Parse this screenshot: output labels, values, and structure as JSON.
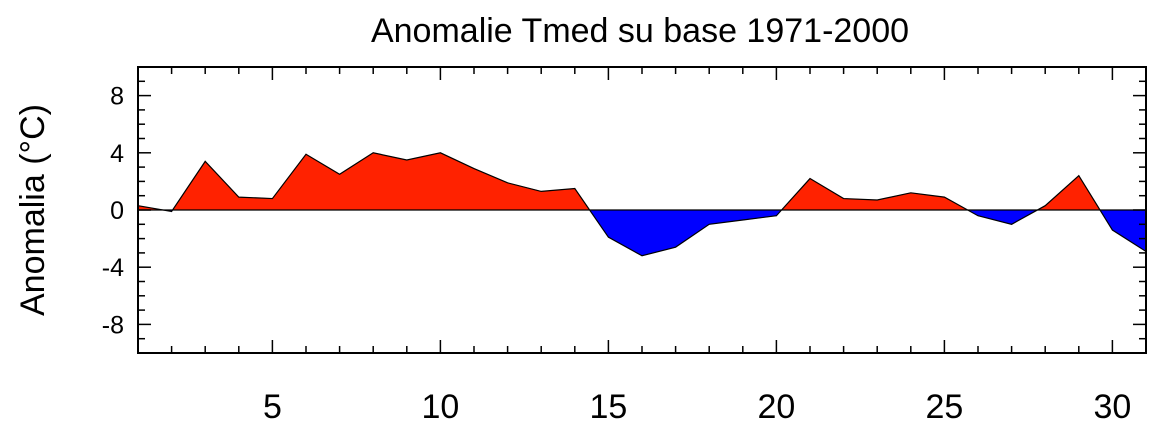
{
  "chart_data": {
    "type": "area",
    "title": "Anomalie Tmed su base 1971-2000",
    "xlabel": "",
    "ylabel": "Anomalia (°C)",
    "xlim": [
      1,
      31
    ],
    "ylim": [
      -10,
      10
    ],
    "x_ticks": [
      5,
      10,
      15,
      20,
      25,
      30
    ],
    "y_ticks": [
      8,
      4,
      0,
      -4,
      -8
    ],
    "x_tick_labels": [
      "5",
      "10",
      "15",
      "20",
      "25",
      "30"
    ],
    "y_tick_labels": [
      "8",
      "4",
      "0",
      "-4",
      "-8"
    ],
    "positive_color": "#ff2200",
    "negative_color": "#0000ff",
    "grid": false,
    "series": [
      {
        "x": [
          1,
          2,
          3,
          4,
          5,
          6,
          7,
          8,
          9,
          10,
          11,
          12,
          13,
          14,
          15,
          16,
          17,
          18,
          19,
          20,
          21,
          22,
          23,
          24,
          25,
          26,
          27,
          28,
          29,
          30,
          31
        ],
        "values": [
          0.3,
          -0.1,
          3.4,
          0.9,
          0.8,
          3.9,
          2.5,
          4.0,
          3.5,
          4.0,
          2.9,
          1.9,
          1.3,
          1.5,
          -1.9,
          -3.2,
          -2.6,
          -1.0,
          -0.7,
          -0.4,
          2.2,
          0.8,
          0.7,
          1.2,
          0.9,
          -0.4,
          -1.0,
          0.3,
          2.4,
          -1.4,
          -2.9
        ]
      }
    ]
  }
}
